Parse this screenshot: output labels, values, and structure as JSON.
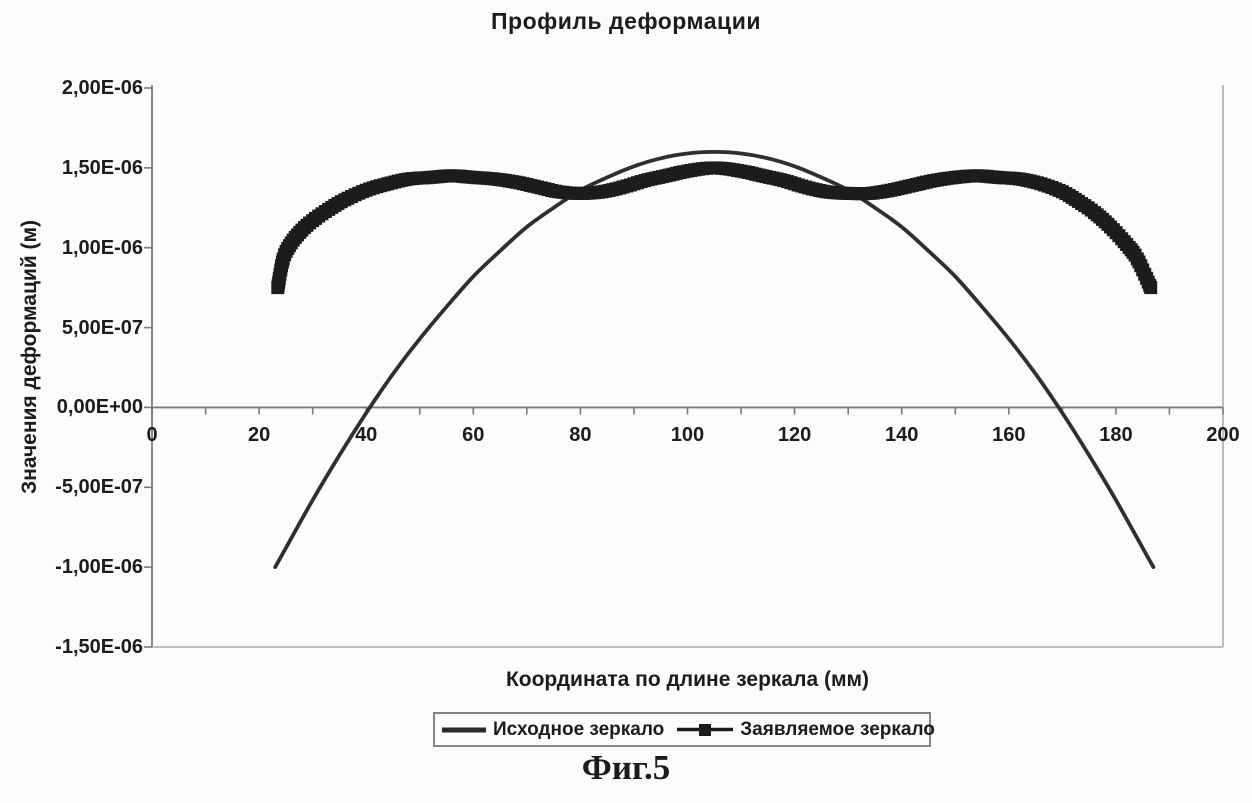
{
  "figure": {
    "caption": "Фиг.5"
  },
  "chart_data": {
    "type": "line",
    "title": "Профиль деформации",
    "xlabel": "Координата по длине зеркала (мм)",
    "ylabel": "Значения деформаций (м)",
    "xlim": [
      0,
      200
    ],
    "ylim": [
      -1.5e-06,
      2e-06
    ],
    "grid": "off",
    "x_ticks": {
      "values": [
        0,
        20,
        40,
        60,
        80,
        100,
        120,
        140,
        160,
        180,
        200
      ],
      "labels": [
        "0",
        "20",
        "40",
        "60",
        "80",
        "100",
        "120",
        "140",
        "160",
        "180",
        "200"
      ],
      "minor_step": 10
    },
    "y_ticks": {
      "values": [
        2e-06,
        1.5e-06,
        1e-06,
        5e-07,
        0,
        -5e-07,
        -1e-06,
        -1.5e-06
      ],
      "labels": [
        "2,00E-06",
        "1,50E-06",
        "1,00E-06",
        "5,00E-07",
        "0,00E+00",
        "-5,00E-07",
        "-1,00E-06",
        "-1,50E-06"
      ]
    },
    "legend": {
      "position": "bottom",
      "entries": [
        {
          "label": "Исходное зеркало",
          "style": "line"
        },
        {
          "label": "Заявляемое зеркало",
          "style": "line-square-marker"
        }
      ]
    },
    "colors": {
      "series_line": "#2f2f2f",
      "series_marker": "#1c1c1c",
      "axis": "#7a7a7a",
      "plot_border": "#a8a8a8",
      "text": "#1c1c1c"
    },
    "series": [
      {
        "name": "Исходное зеркало",
        "style": "line",
        "points": [
          [
            23,
            -1e-06
          ],
          [
            25,
            -8.8e-07
          ],
          [
            30,
            -5.8e-07
          ],
          [
            35,
            -3e-07
          ],
          [
            40,
            -3.5e-08
          ],
          [
            45,
            2.1e-07
          ],
          [
            50,
            4.3e-07
          ],
          [
            55,
            6.3e-07
          ],
          [
            60,
            8.2e-07
          ],
          [
            65,
            9.8e-07
          ],
          [
            70,
            1.13e-06
          ],
          [
            75,
            1.25e-06
          ],
          [
            80,
            1.36e-06
          ],
          [
            85,
            1.44e-06
          ],
          [
            90,
            1.51e-06
          ],
          [
            95,
            1.56e-06
          ],
          [
            100,
            1.59e-06
          ],
          [
            105,
            1.6e-06
          ],
          [
            110,
            1.59e-06
          ],
          [
            115,
            1.56e-06
          ],
          [
            120,
            1.51e-06
          ],
          [
            125,
            1.44e-06
          ],
          [
            130,
            1.36e-06
          ],
          [
            135,
            1.25e-06
          ],
          [
            140,
            1.13e-06
          ],
          [
            145,
            9.8e-07
          ],
          [
            150,
            8.2e-07
          ],
          [
            155,
            6.3e-07
          ],
          [
            160,
            4.3e-07
          ],
          [
            165,
            2.1e-07
          ],
          [
            170,
            -3.5e-08
          ],
          [
            175,
            -3e-07
          ],
          [
            180,
            -5.8e-07
          ],
          [
            185,
            -8.8e-07
          ],
          [
            187,
            -1e-06
          ]
        ]
      },
      {
        "name": "Заявляемое зеркало",
        "style": "square-marker-band",
        "points": [
          [
            23.5,
            7.5e-07
          ],
          [
            24.5,
            9.3e-07
          ],
          [
            26,
            1.03e-06
          ],
          [
            28,
            1.11e-06
          ],
          [
            30,
            1.17e-06
          ],
          [
            33,
            1.24e-06
          ],
          [
            36,
            1.3e-06
          ],
          [
            40,
            1.36e-06
          ],
          [
            44,
            1.4e-06
          ],
          [
            48,
            1.43e-06
          ],
          [
            52,
            1.44e-06
          ],
          [
            56,
            1.45e-06
          ],
          [
            60,
            1.44e-06
          ],
          [
            64,
            1.43e-06
          ],
          [
            68,
            1.41e-06
          ],
          [
            72,
            1.38e-06
          ],
          [
            76,
            1.35e-06
          ],
          [
            80,
            1.34e-06
          ],
          [
            84,
            1.35e-06
          ],
          [
            88,
            1.38e-06
          ],
          [
            92,
            1.42e-06
          ],
          [
            96,
            1.45e-06
          ],
          [
            100,
            1.48e-06
          ],
          [
            105,
            1.5e-06
          ],
          [
            110,
            1.48e-06
          ],
          [
            114,
            1.45e-06
          ],
          [
            118,
            1.42e-06
          ],
          [
            122,
            1.38e-06
          ],
          [
            126,
            1.35e-06
          ],
          [
            130,
            1.34e-06
          ],
          [
            134,
            1.34e-06
          ],
          [
            138,
            1.36e-06
          ],
          [
            142,
            1.39e-06
          ],
          [
            146,
            1.42e-06
          ],
          [
            150,
            1.44e-06
          ],
          [
            154,
            1.45e-06
          ],
          [
            158,
            1.44e-06
          ],
          [
            162,
            1.43e-06
          ],
          [
            166,
            1.4e-06
          ],
          [
            170,
            1.35e-06
          ],
          [
            173,
            1.29e-06
          ],
          [
            176,
            1.22e-06
          ],
          [
            179,
            1.13e-06
          ],
          [
            182,
            1.02e-06
          ],
          [
            184,
            9.3e-07
          ],
          [
            186.5,
            7.5e-07
          ]
        ]
      }
    ]
  }
}
